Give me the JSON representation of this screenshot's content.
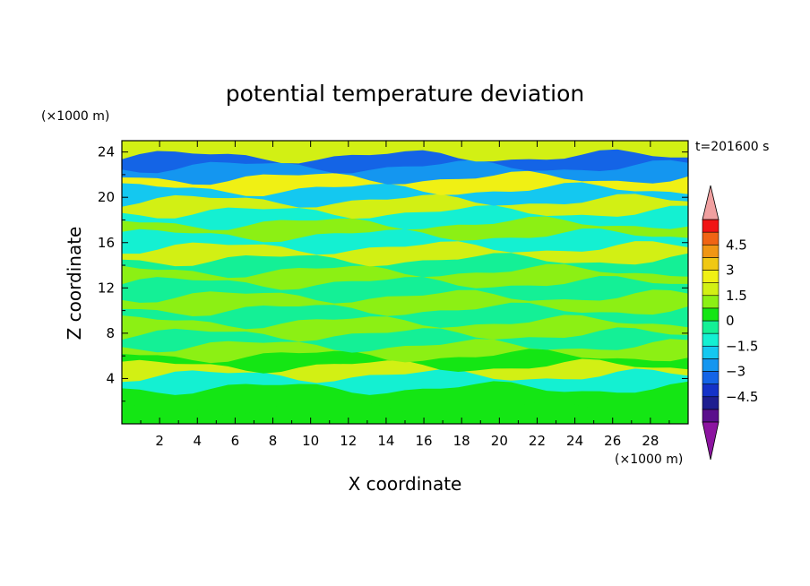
{
  "chart_data": {
    "type": "heatmap",
    "title": "potential temperature deviation",
    "xlabel": "X coordinate",
    "ylabel": "Z coordinate",
    "x_unit": "(×1000 m)",
    "y_unit": "(×1000 m)",
    "time_label": "t=201600 s",
    "xlim": [
      0,
      30
    ],
    "ylim": [
      0,
      25
    ],
    "x_ticks": [
      "2",
      "4",
      "6",
      "8",
      "10",
      "12",
      "14",
      "16",
      "18",
      "20",
      "22",
      "24",
      "26",
      "28"
    ],
    "y_ticks": [
      "4",
      "8",
      "12",
      "16",
      "20",
      "24"
    ],
    "colorbar": {
      "levels": [
        -5.25,
        -4.5,
        -3.75,
        -3,
        -2.25,
        -1.5,
        -0.75,
        0,
        0.75,
        1.5,
        2.25,
        3,
        3.75,
        4.5,
        5.25
      ],
      "tick_labels": [
        "4.5",
        "3",
        "1.5",
        "0",
        "−1.5",
        "−3",
        "−4.5"
      ],
      "tick_values": [
        4.5,
        3,
        1.5,
        0,
        -1.5,
        -3,
        -4.5
      ],
      "colors": [
        "#5a0f8c",
        "#1e1e90",
        "#1432c8",
        "#1464e6",
        "#1496f0",
        "#14c8f0",
        "#14f0d2",
        "#14f096",
        "#14e614",
        "#8cf014",
        "#d2f014",
        "#f0f014",
        "#f0c814",
        "#f09614",
        "#f06414",
        "#f01414"
      ],
      "under_color": "#8c14a0",
      "over_color": "#f0a0a0"
    },
    "field_bands": [
      {
        "z": 1.0,
        "value": 0.4
      },
      {
        "z": 3.0,
        "value": 0.3
      },
      {
        "z": 4.5,
        "value": -0.9
      },
      {
        "z": 5.2,
        "value": 1.6
      },
      {
        "z": 6.2,
        "value": 0.2
      },
      {
        "z": 7.0,
        "value": 1.0
      },
      {
        "z": 8.0,
        "value": -0.5
      },
      {
        "z": 9.0,
        "value": 0.9
      },
      {
        "z": 10.2,
        "value": -0.3
      },
      {
        "z": 11.2,
        "value": 1.3
      },
      {
        "z": 12.5,
        "value": -0.6
      },
      {
        "z": 13.6,
        "value": 1.0
      },
      {
        "z": 14.6,
        "value": -0.2
      },
      {
        "z": 15.6,
        "value": 1.5
      },
      {
        "z": 16.7,
        "value": -0.8
      },
      {
        "z": 17.8,
        "value": 1.1
      },
      {
        "z": 18.8,
        "value": -1.2
      },
      {
        "z": 19.8,
        "value": 1.7
      },
      {
        "z": 20.8,
        "value": -1.6
      },
      {
        "z": 21.8,
        "value": 2.4
      },
      {
        "z": 22.8,
        "value": -2.6
      },
      {
        "z": 23.8,
        "value": -3.4
      },
      {
        "z": 24.6,
        "value": 1.8
      }
    ]
  }
}
